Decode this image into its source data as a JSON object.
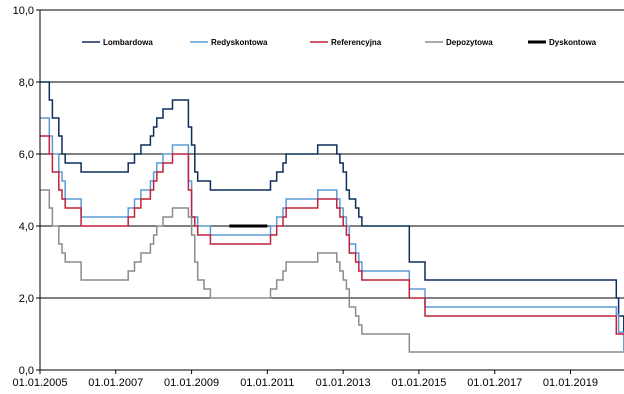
{
  "chart_data": {
    "type": "line",
    "ylim": [
      0,
      10
    ],
    "yticks": [
      "0,0",
      "2,0",
      "4,0",
      "6,0",
      "8,0",
      "10,0"
    ],
    "xlim": [
      "2005-01-01",
      "2020-05-31"
    ],
    "xticks": [
      "01.01.2005",
      "01.01.2007",
      "01.01.2009",
      "01.01.2011",
      "01.01.2013",
      "01.01.2015",
      "01.01.2017",
      "01.01.2019"
    ],
    "grid": "horizontal",
    "legend": "top",
    "series": [
      {
        "name": "Lombardowa",
        "color": "#0d2f5c",
        "steps": [
          [
            "2005-01-01",
            8.0
          ],
          [
            "2005-04-01",
            7.5
          ],
          [
            "2005-05-01",
            7.0
          ],
          [
            "2005-07-01",
            6.5
          ],
          [
            "2005-08-01",
            6.0
          ],
          [
            "2005-09-01",
            5.75
          ],
          [
            "2006-02-01",
            5.5
          ],
          [
            "2007-05-01",
            5.75
          ],
          [
            "2007-07-01",
            6.0
          ],
          [
            "2007-09-01",
            6.25
          ],
          [
            "2007-12-01",
            6.5
          ],
          [
            "2008-01-01",
            6.75
          ],
          [
            "2008-02-01",
            7.0
          ],
          [
            "2008-04-01",
            7.25
          ],
          [
            "2008-07-01",
            7.5
          ],
          [
            "2008-12-01",
            6.75
          ],
          [
            "2009-01-01",
            6.25
          ],
          [
            "2009-02-01",
            5.5
          ],
          [
            "2009-03-01",
            5.25
          ],
          [
            "2009-07-01",
            5.0
          ],
          [
            "2011-02-01",
            5.25
          ],
          [
            "2011-04-01",
            5.5
          ],
          [
            "2011-06-01",
            5.75
          ],
          [
            "2011-07-01",
            6.0
          ],
          [
            "2012-05-01",
            6.25
          ],
          [
            "2012-11-01",
            6.0
          ],
          [
            "2012-12-01",
            5.75
          ],
          [
            "2013-01-01",
            5.5
          ],
          [
            "2013-02-01",
            5.0
          ],
          [
            "2013-03-01",
            4.75
          ],
          [
            "2013-05-01",
            4.5
          ],
          [
            "2013-06-01",
            4.25
          ],
          [
            "2013-07-01",
            4.0
          ],
          [
            "2014-10-01",
            3.0
          ],
          [
            "2015-03-01",
            2.5
          ],
          [
            "2020-03-18",
            2.0
          ],
          [
            "2020-04-09",
            1.5
          ],
          [
            "2020-05-29",
            1.0
          ]
        ]
      },
      {
        "name": "Redyskontowa",
        "color": "#5b9bd5",
        "steps": [
          [
            "2005-01-01",
            7.0
          ],
          [
            "2005-04-01",
            6.5
          ],
          [
            "2005-05-01",
            6.0
          ],
          [
            "2005-07-01",
            5.5
          ],
          [
            "2005-08-01",
            5.25
          ],
          [
            "2005-09-01",
            4.75
          ],
          [
            "2006-02-01",
            4.25
          ],
          [
            "2007-05-01",
            4.5
          ],
          [
            "2007-07-01",
            4.75
          ],
          [
            "2007-09-01",
            5.0
          ],
          [
            "2007-12-01",
            5.25
          ],
          [
            "2008-01-01",
            5.5
          ],
          [
            "2008-02-01",
            5.75
          ],
          [
            "2008-04-01",
            6.0
          ],
          [
            "2008-07-01",
            6.25
          ],
          [
            "2008-12-01",
            5.25
          ],
          [
            "2009-01-01",
            4.25
          ],
          [
            "2009-03-01",
            4.0
          ],
          [
            "2009-07-01",
            3.75
          ],
          [
            "2011-02-01",
            4.0
          ],
          [
            "2011-04-01",
            4.25
          ],
          [
            "2011-06-01",
            4.5
          ],
          [
            "2011-07-01",
            4.75
          ],
          [
            "2012-05-01",
            5.0
          ],
          [
            "2012-11-01",
            4.75
          ],
          [
            "2012-12-01",
            4.5
          ],
          [
            "2013-01-01",
            4.25
          ],
          [
            "2013-02-01",
            4.0
          ],
          [
            "2013-03-01",
            3.5
          ],
          [
            "2013-05-01",
            3.25
          ],
          [
            "2013-06-01",
            3.0
          ],
          [
            "2013-07-01",
            2.75
          ],
          [
            "2014-10-01",
            2.25
          ],
          [
            "2015-03-01",
            1.75
          ],
          [
            "2020-03-18",
            1.55
          ],
          [
            "2020-04-09",
            1.05
          ],
          [
            "2020-05-29",
            0.55
          ]
        ]
      },
      {
        "name": "Referencyjna",
        "color": "#c0203a",
        "steps": [
          [
            "2005-01-01",
            6.5
          ],
          [
            "2005-04-01",
            6.0
          ],
          [
            "2005-05-01",
            5.5
          ],
          [
            "2005-07-01",
            5.0
          ],
          [
            "2005-08-01",
            4.75
          ],
          [
            "2005-09-01",
            4.5
          ],
          [
            "2006-02-01",
            4.0
          ],
          [
            "2007-05-01",
            4.25
          ],
          [
            "2007-07-01",
            4.5
          ],
          [
            "2007-09-01",
            4.75
          ],
          [
            "2007-12-01",
            5.0
          ],
          [
            "2008-01-01",
            5.25
          ],
          [
            "2008-02-01",
            5.5
          ],
          [
            "2008-04-01",
            5.75
          ],
          [
            "2008-07-01",
            6.0
          ],
          [
            "2008-12-01",
            5.0
          ],
          [
            "2009-01-01",
            4.25
          ],
          [
            "2009-02-01",
            4.0
          ],
          [
            "2009-03-01",
            3.75
          ],
          [
            "2009-07-01",
            3.5
          ],
          [
            "2011-02-01",
            3.75
          ],
          [
            "2011-04-01",
            4.0
          ],
          [
            "2011-06-01",
            4.25
          ],
          [
            "2011-07-01",
            4.5
          ],
          [
            "2012-05-01",
            4.75
          ],
          [
            "2012-11-01",
            4.5
          ],
          [
            "2012-12-01",
            4.25
          ],
          [
            "2013-01-01",
            4.0
          ],
          [
            "2013-02-01",
            3.75
          ],
          [
            "2013-03-01",
            3.25
          ],
          [
            "2013-05-01",
            3.0
          ],
          [
            "2013-06-01",
            2.75
          ],
          [
            "2013-07-01",
            2.5
          ],
          [
            "2014-10-01",
            2.0
          ],
          [
            "2015-03-01",
            1.5
          ],
          [
            "2020-03-18",
            1.0
          ]
        ]
      },
      {
        "name": "Depozytowa",
        "color": "#8c8c8c",
        "steps": [
          [
            "2005-01-01",
            5.0
          ],
          [
            "2005-04-01",
            4.5
          ],
          [
            "2005-05-01",
            4.0
          ],
          [
            "2005-07-01",
            3.5
          ],
          [
            "2005-08-01",
            3.25
          ],
          [
            "2005-09-01",
            3.0
          ],
          [
            "2006-02-01",
            2.5
          ],
          [
            "2007-05-01",
            2.75
          ],
          [
            "2007-07-01",
            3.0
          ],
          [
            "2007-09-01",
            3.25
          ],
          [
            "2007-12-01",
            3.5
          ],
          [
            "2008-01-01",
            3.75
          ],
          [
            "2008-02-01",
            4.0
          ],
          [
            "2008-04-01",
            4.25
          ],
          [
            "2008-07-01",
            4.5
          ],
          [
            "2008-12-01",
            4.25
          ],
          [
            "2009-01-01",
            3.75
          ],
          [
            "2009-02-01",
            3.0
          ],
          [
            "2009-03-01",
            2.5
          ],
          [
            "2009-05-01",
            2.25
          ],
          [
            "2009-07-01",
            2.0
          ],
          [
            "2011-02-01",
            2.25
          ],
          [
            "2011-04-01",
            2.5
          ],
          [
            "2011-06-01",
            2.75
          ],
          [
            "2011-07-01",
            3.0
          ],
          [
            "2012-05-01",
            3.25
          ],
          [
            "2012-11-01",
            3.0
          ],
          [
            "2012-12-01",
            2.75
          ],
          [
            "2013-01-01",
            2.5
          ],
          [
            "2013-02-01",
            2.25
          ],
          [
            "2013-03-01",
            1.75
          ],
          [
            "2013-05-01",
            1.5
          ],
          [
            "2013-06-01",
            1.25
          ],
          [
            "2013-07-01",
            1.0
          ],
          [
            "2014-10-01",
            0.5
          ],
          [
            "2020-05-29",
            0.5
          ]
        ]
      },
      {
        "name": "Dyskontowa",
        "color": "#000000",
        "steps": [
          [
            "2010-01-01",
            4.0
          ],
          [
            "2011-01-01",
            4.0
          ]
        ]
      }
    ]
  }
}
